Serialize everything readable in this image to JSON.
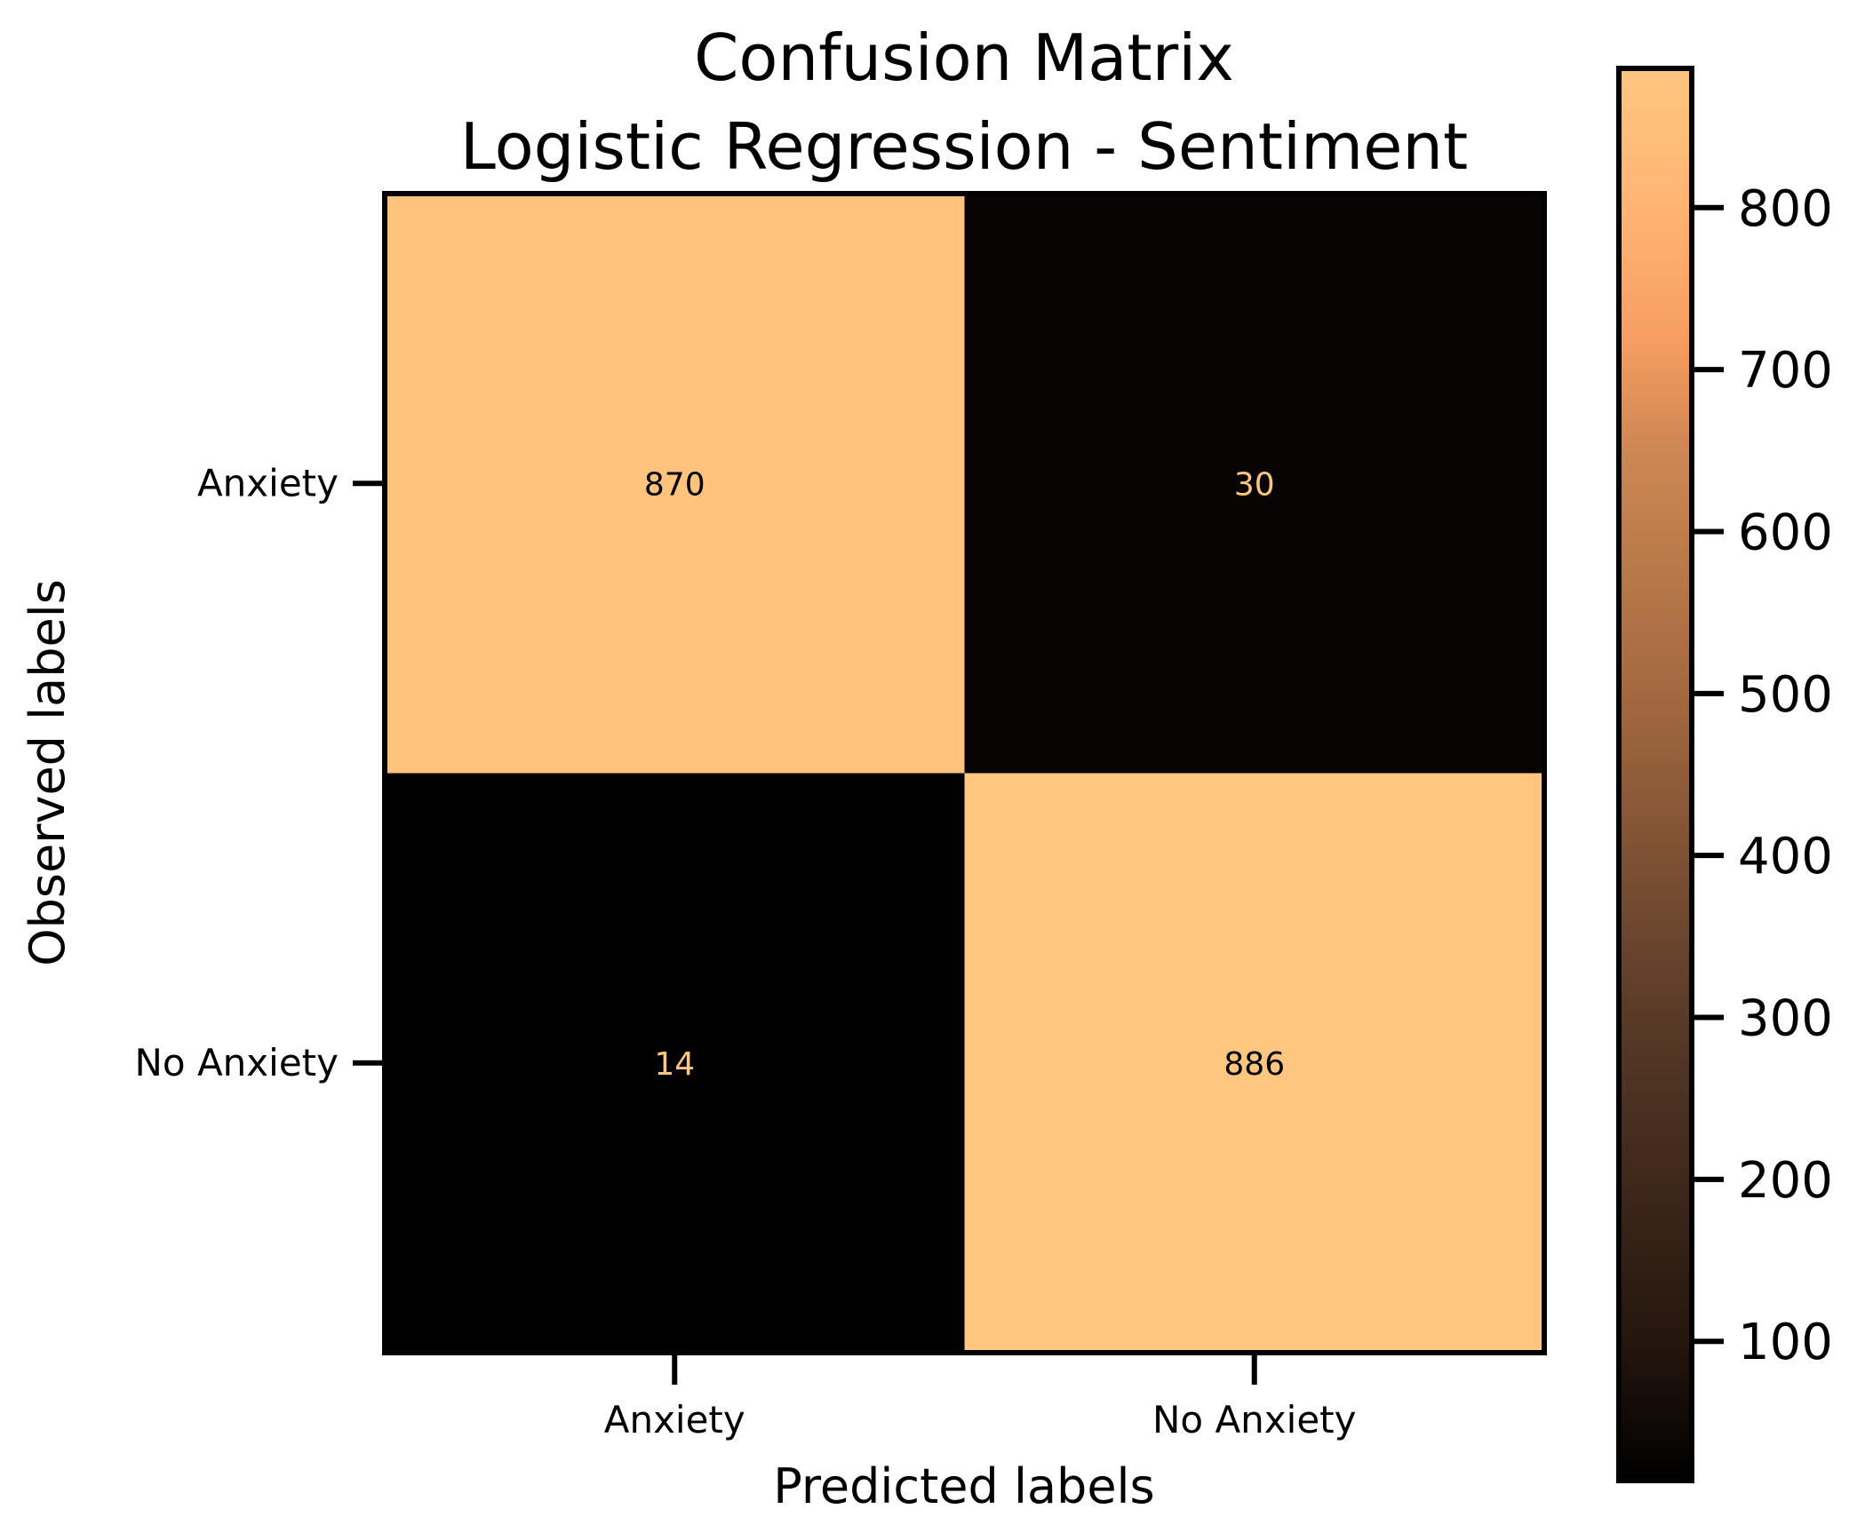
{
  "chart_data": {
    "type": "heatmap",
    "title_lines": [
      "Confusion Matrix",
      "Logistic Regression - Sentiment"
    ],
    "xlabel": "Predicted labels",
    "ylabel": "Observed labels",
    "x_categories": [
      "Anxiety",
      "No Anxiety"
    ],
    "y_categories": [
      "Anxiety",
      "No Anxiety"
    ],
    "matrix": [
      [
        870,
        30
      ],
      [
        14,
        886
      ]
    ],
    "cells": [
      {
        "row": 0,
        "col": 0,
        "value": 870,
        "label": "870"
      },
      {
        "row": 0,
        "col": 1,
        "value": 30,
        "label": "30"
      },
      {
        "row": 1,
        "col": 0,
        "value": 14,
        "label": "14"
      },
      {
        "row": 1,
        "col": 1,
        "value": 886,
        "label": "886"
      }
    ],
    "colorbar": {
      "colormap": "copper",
      "vmin": 14,
      "vmax": 886,
      "ticks": [
        100,
        200,
        300,
        400,
        500,
        600,
        700,
        800
      ],
      "tick_labels": [
        "100",
        "200",
        "300",
        "400",
        "500",
        "600",
        "700",
        "800"
      ],
      "stops": [
        {
          "value": 14,
          "color": "#000000"
        },
        {
          "value": 100,
          "color": "#25160e"
        },
        {
          "value": 300,
          "color": "#593a27"
        },
        {
          "value": 500,
          "color": "#a36940"
        },
        {
          "value": 650,
          "color": "#cd8753"
        },
        {
          "value": 720,
          "color": "#f79e62"
        },
        {
          "value": 800,
          "color": "#ffb474"
        },
        {
          "value": 886,
          "color": "#ffc680"
        }
      ]
    },
    "colors": {
      "high": "#ffc680",
      "low": "#050302",
      "text_on_light": "#000000",
      "text_on_dark": "#ffc680",
      "frame": "#000000"
    }
  }
}
